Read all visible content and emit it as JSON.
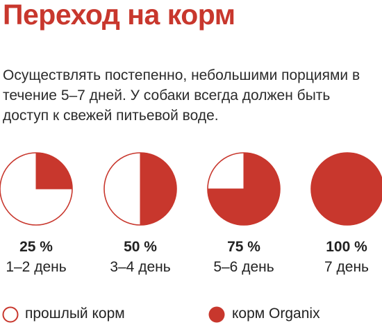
{
  "title": "Переход на корм",
  "description": "Осуществлять постепенно, небольшими порциями в течение 5–7 дней. У собаки всегда должен быть доступ к свежей питьевой воде.",
  "accent_color": "#c8372d",
  "stages": [
    {
      "percent_label": "25 %",
      "days_label": "1–2 день",
      "new_food_fraction": 0.25
    },
    {
      "percent_label": "50 %",
      "days_label": "3–4 день",
      "new_food_fraction": 0.5
    },
    {
      "percent_label": "75 %",
      "days_label": "5–6 день",
      "new_food_fraction": 0.75
    },
    {
      "percent_label": "100 %",
      "days_label": "7 день",
      "new_food_fraction": 1.0
    }
  ],
  "legend": {
    "old_food": "прошлый корм",
    "new_food": "корм Organix"
  }
}
